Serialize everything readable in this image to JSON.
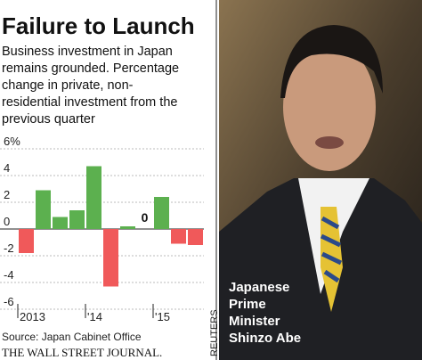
{
  "chart_data": {
    "type": "bar",
    "title": "Failure to Launch",
    "subtitle": [
      "Business investment in Japan",
      "remains grounded. Percentage",
      "change in private, non-",
      "residential investment from the",
      "previous quarter"
    ],
    "categories": [
      "2013",
      null,
      null,
      null,
      "'14",
      null,
      null,
      null,
      "'15",
      null,
      null
    ],
    "values": [
      -1.8,
      2.9,
      0.9,
      1.4,
      4.7,
      -4.3,
      0.2,
      0,
      2.4,
      -1.1,
      -1.2
    ],
    "value_labels": [
      null,
      null,
      null,
      null,
      null,
      null,
      null,
      "0",
      null,
      null,
      null
    ],
    "positive_color": "#5cb04f",
    "negative_color": "#f0595a",
    "ylim": [
      -6,
      6
    ],
    "yticks": [
      -6,
      -4,
      -2,
      0,
      2,
      4,
      {
        "value": 6,
        "label": "6%"
      }
    ],
    "grid": true
  },
  "source": "Source: Japan Cabinet Office",
  "publisher": "THE WALL STREET JOURNAL.",
  "photo": {
    "caption": [
      "Japanese",
      "Prime",
      "Minister",
      "Shinzo Abe"
    ],
    "credit": "REUTERS"
  }
}
